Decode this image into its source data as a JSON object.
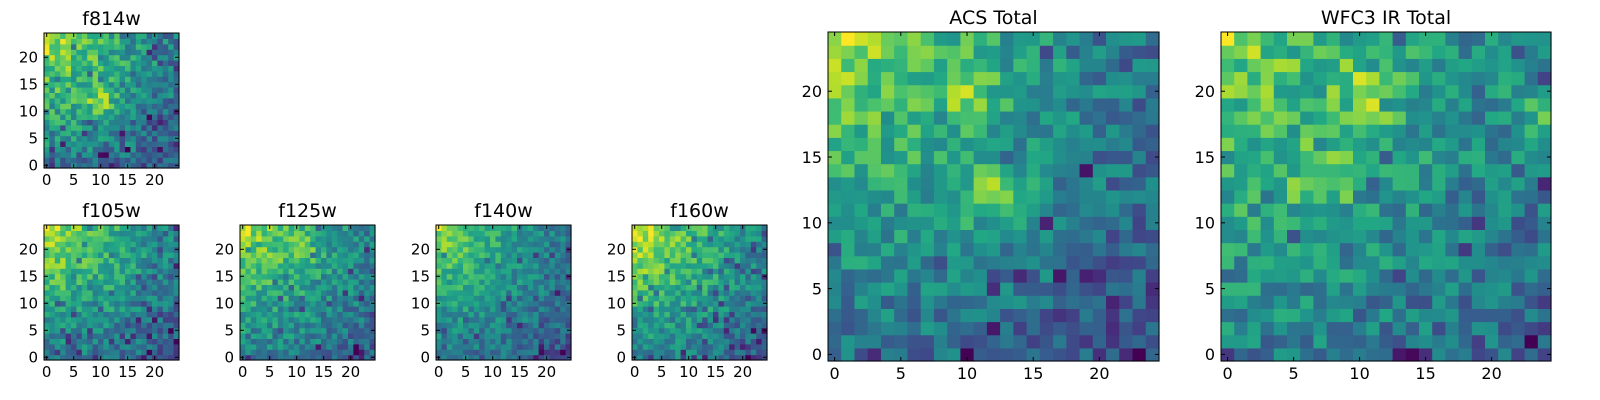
{
  "chart_data": [
    {
      "id": "f814w",
      "type": "heatmap",
      "title": "f814w",
      "grid_size": 25,
      "xlim": [
        0,
        24
      ],
      "ylim": [
        0,
        24
      ],
      "xticks": [
        0,
        5,
        10,
        15,
        20
      ],
      "xtick_labels": [
        "0",
        "5",
        "10",
        "15",
        "20"
      ],
      "yticks": [
        0,
        5,
        10,
        15,
        20
      ],
      "ytick_labels": [
        "0",
        "5",
        "10",
        "15",
        "20"
      ],
      "colormap": "viridis",
      "pattern": {
        "corner_peak": [
          0,
          24
        ],
        "falloff": 0.8,
        "hotspots": [
          [
            10,
            12,
            0.35
          ]
        ],
        "noise": 0.22,
        "dark_fraction": 0.1,
        "seed": 11
      }
    },
    {
      "id": "f105w",
      "type": "heatmap",
      "title": "f105w",
      "grid_size": 25,
      "xlim": [
        0,
        24
      ],
      "ylim": [
        0,
        24
      ],
      "xticks": [
        0,
        5,
        10,
        15,
        20
      ],
      "xtick_labels": [
        "0",
        "5",
        "10",
        "15",
        "20"
      ],
      "yticks": [
        0,
        5,
        10,
        15,
        20
      ],
      "ytick_labels": [
        "0",
        "5",
        "10",
        "15",
        "20"
      ],
      "colormap": "viridis",
      "pattern": {
        "corner_peak": [
          0,
          24
        ],
        "falloff": 0.85,
        "hotspots": [],
        "noise": 0.2,
        "dark_fraction": 0.12,
        "seed": 23
      }
    },
    {
      "id": "f125w",
      "type": "heatmap",
      "title": "f125w",
      "grid_size": 25,
      "xlim": [
        0,
        24
      ],
      "ylim": [
        0,
        24
      ],
      "xticks": [
        0,
        5,
        10,
        15,
        20
      ],
      "xtick_labels": [
        "0",
        "5",
        "10",
        "15",
        "20"
      ],
      "yticks": [
        0,
        5,
        10,
        15,
        20
      ],
      "ytick_labels": [
        "0",
        "5",
        "10",
        "15",
        "20"
      ],
      "colormap": "viridis",
      "pattern": {
        "corner_peak": [
          0,
          24
        ],
        "falloff": 0.75,
        "hotspots": [
          [
            11,
            20,
            0.3
          ]
        ],
        "noise": 0.2,
        "dark_fraction": 0.1,
        "seed": 37
      }
    },
    {
      "id": "f140w",
      "type": "heatmap",
      "title": "f140w",
      "grid_size": 25,
      "xlim": [
        0,
        24
      ],
      "ylim": [
        0,
        24
      ],
      "xticks": [
        0,
        5,
        10,
        15,
        20
      ],
      "xtick_labels": [
        "0",
        "5",
        "10",
        "15",
        "20"
      ],
      "yticks": [
        0,
        5,
        10,
        15,
        20
      ],
      "ytick_labels": [
        "0",
        "5",
        "10",
        "15",
        "20"
      ],
      "colormap": "viridis",
      "pattern": {
        "corner_peak": [
          0,
          24
        ],
        "falloff": 0.9,
        "hotspots": [],
        "noise": 0.2,
        "dark_fraction": 0.1,
        "seed": 51
      }
    },
    {
      "id": "f160w",
      "type": "heatmap",
      "title": "f160w",
      "grid_size": 25,
      "xlim": [
        0,
        24
      ],
      "ylim": [
        0,
        24
      ],
      "xticks": [
        0,
        5,
        10,
        15,
        20
      ],
      "xtick_labels": [
        "0",
        "5",
        "10",
        "15",
        "20"
      ],
      "yticks": [
        0,
        5,
        10,
        15,
        20
      ],
      "ytick_labels": [
        "0",
        "5",
        "10",
        "15",
        "20"
      ],
      "colormap": "viridis",
      "pattern": {
        "corner_peak": [
          0,
          24
        ],
        "falloff": 0.9,
        "hotspots": [],
        "noise": 0.18,
        "dark_fraction": 0.12,
        "seed": 67
      }
    },
    {
      "id": "acs-total",
      "type": "heatmap",
      "title": "ACS Total",
      "grid_size": 25,
      "xlim": [
        0,
        24
      ],
      "ylim": [
        0,
        24
      ],
      "xticks": [
        0,
        5,
        10,
        15,
        20
      ],
      "xtick_labels": [
        "0",
        "5",
        "10",
        "15",
        "20"
      ],
      "yticks": [
        0,
        5,
        10,
        15,
        20
      ],
      "ytick_labels": [
        "0",
        "5",
        "10",
        "15",
        "20"
      ],
      "colormap": "viridis",
      "pattern": {
        "corner_peak": [
          0,
          24
        ],
        "falloff": 0.75,
        "hotspots": [
          [
            12,
            12,
            0.35
          ],
          [
            10,
            20,
            0.2
          ]
        ],
        "noise": 0.18,
        "dark_fraction": 0.07,
        "seed": 79
      }
    },
    {
      "id": "wfc3-ir-total",
      "type": "heatmap",
      "title": "WFC3 IR Total",
      "grid_size": 25,
      "xlim": [
        0,
        24
      ],
      "ylim": [
        0,
        24
      ],
      "xticks": [
        0,
        5,
        10,
        15,
        20
      ],
      "xtick_labels": [
        "0",
        "5",
        "10",
        "15",
        "20"
      ],
      "yticks": [
        0,
        5,
        10,
        15,
        20
      ],
      "ytick_labels": [
        "0",
        "5",
        "10",
        "15",
        "20"
      ],
      "colormap": "viridis",
      "pattern": {
        "corner_peak": [
          0,
          24
        ],
        "falloff": 0.7,
        "hotspots": [
          [
            11,
            20,
            0.3
          ],
          [
            7,
            13,
            0.3
          ],
          [
            24,
            18,
            0.3
          ]
        ],
        "noise": 0.24,
        "dark_fraction": 0.07,
        "seed": 97
      }
    }
  ]
}
